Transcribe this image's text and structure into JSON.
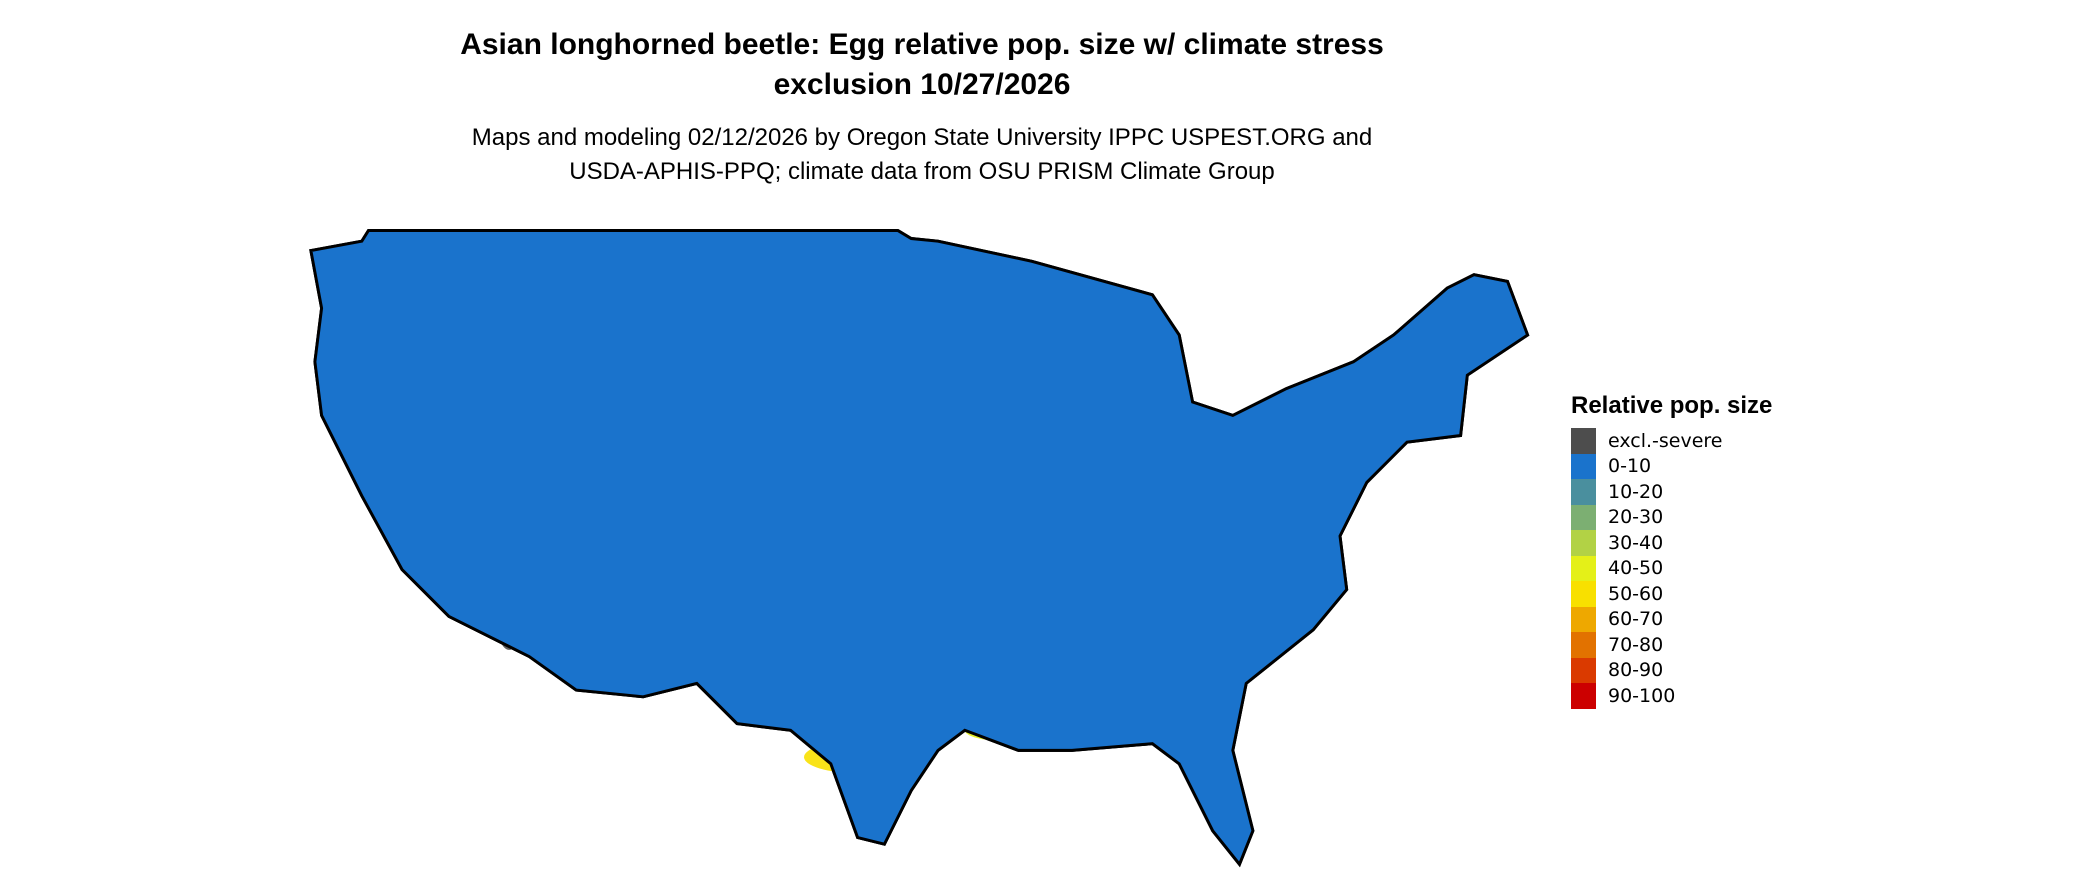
{
  "title": {
    "line1": "Asian longhorned beetle: Egg relative pop. size w/ climate stress",
    "line2": "exclusion 10/27/2026"
  },
  "subtitle": {
    "line1": "Maps and modeling 02/12/2026 by Oregon State University IPPC USPEST.ORG and",
    "line2": "USDA-APHIS-PPQ; climate data from OSU PRISM Climate Group"
  },
  "map": {
    "region": "Contiguous United States",
    "base_color": "#1a73cc",
    "border_color": "#000000"
  },
  "legend": {
    "title": "Relative pop. size",
    "items": [
      {
        "label": "excl.-severe",
        "color": "#4d4d4d"
      },
      {
        "label": "0-10",
        "color": "#1a73cc"
      },
      {
        "label": "10-20",
        "color": "#4a8f9e"
      },
      {
        "label": "20-30",
        "color": "#7caf72"
      },
      {
        "label": "30-40",
        "color": "#b2d245"
      },
      {
        "label": "40-50",
        "color": "#e4f018"
      },
      {
        "label": "50-60",
        "color": "#f8e000"
      },
      {
        "label": "60-70",
        "color": "#eea800"
      },
      {
        "label": "70-80",
        "color": "#e27200"
      },
      {
        "label": "80-90",
        "color": "#da3a00"
      },
      {
        "label": "90-100",
        "color": "#cc0000"
      }
    ]
  }
}
